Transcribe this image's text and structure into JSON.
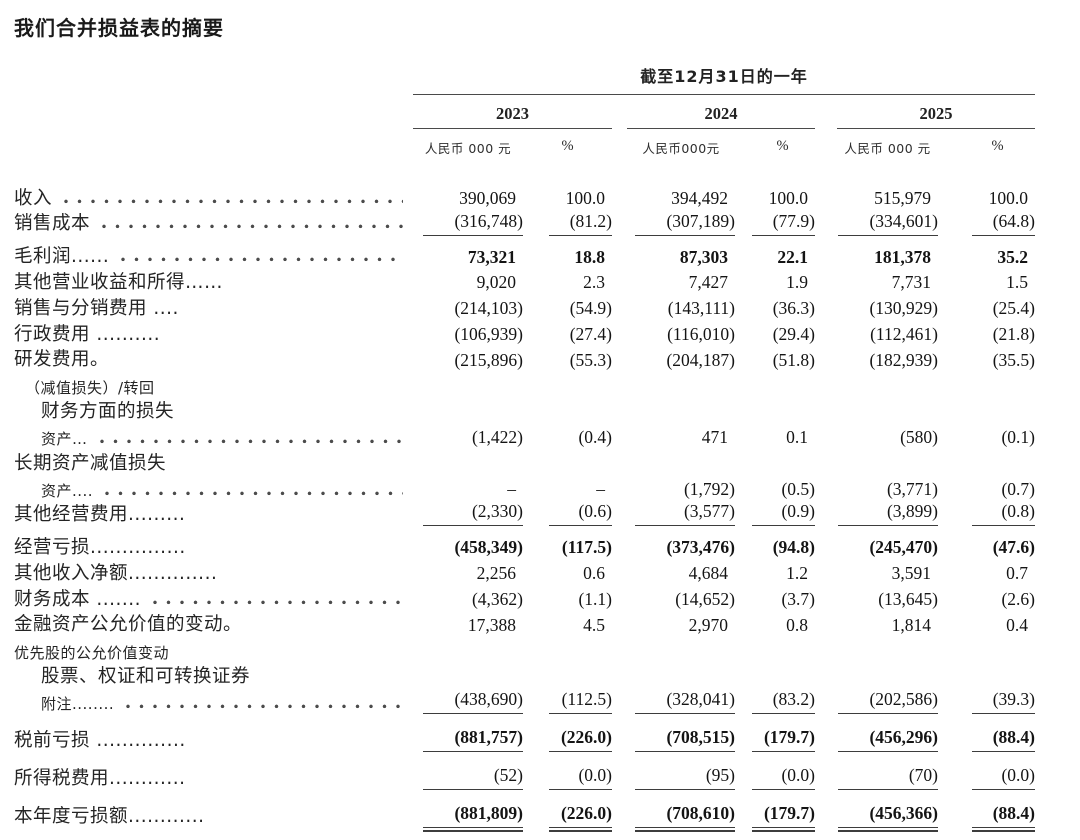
{
  "page": {
    "title": "我们合并损益表的摘要"
  },
  "table": {
    "period_header": "截至12月31日的一年",
    "groups": [
      {
        "year": "2023",
        "unit": "人民币 000 元",
        "pct": "%"
      },
      {
        "year": "2024",
        "unit": "人民币000元",
        "pct": "%"
      },
      {
        "year": "2025",
        "unit": "人民币 000 元",
        "pct": "%"
      }
    ],
    "rows": [
      {
        "label": "收入",
        "indent": 0,
        "small": false,
        "bold": false,
        "leader": true,
        "rule": "none",
        "values": [
          "390,069",
          "100.0",
          "394,492",
          "100.0",
          "515,979",
          "100.0"
        ]
      },
      {
        "label": "销售成本",
        "indent": 0,
        "small": false,
        "bold": false,
        "leader": true,
        "rule": "single",
        "values": [
          "(316,748)",
          "(81.2)",
          "(307,189)",
          "(77.9)",
          "(334,601)",
          "(64.8)"
        ]
      },
      {
        "label": "毛利润......",
        "indent": 0,
        "small": false,
        "bold": true,
        "leader": true,
        "rule": "none",
        "values": [
          "73,321",
          "18.8",
          "87,303",
          "22.1",
          "181,378",
          "35.2"
        ]
      },
      {
        "label": "其他营业收益和所得……",
        "indent": 0,
        "small": false,
        "bold": false,
        "leader": false,
        "rule": "none",
        "values": [
          "9,020",
          "2.3",
          "7,427",
          "1.9",
          "7,731",
          "1.5"
        ]
      },
      {
        "label": "销售与分销费用 ....",
        "indent": 0,
        "small": false,
        "bold": false,
        "leader": false,
        "rule": "none",
        "values": [
          "(214,103)",
          "(54.9)",
          "(143,111)",
          "(36.3)",
          "(130,929)",
          "(25.4)"
        ]
      },
      {
        "label": "行政费用 ..........",
        "indent": 0,
        "small": false,
        "bold": false,
        "leader": false,
        "rule": "none",
        "values": [
          "(106,939)",
          "(27.4)",
          "(116,010)",
          "(29.4)",
          "(112,461)",
          "(21.8)"
        ]
      },
      {
        "label": "研发费用。",
        "indent": 0,
        "small": false,
        "bold": false,
        "leader": false,
        "rule": "none",
        "values": [
          "(215,896)",
          "(55.3)",
          "(204,187)",
          "(51.8)",
          "(182,939)",
          "(35.5)"
        ]
      },
      {
        "label": "（减值损失）/转回",
        "indent": 1,
        "small": true,
        "bold": false,
        "leader": false,
        "rule": "none",
        "values": null
      },
      {
        "label": "财务方面的损失",
        "indent": 2,
        "small": false,
        "bold": false,
        "leader": false,
        "rule": "none",
        "values": null
      },
      {
        "label": "资产…",
        "indent": 2,
        "small": true,
        "bold": false,
        "leader": true,
        "rule": "none",
        "values": [
          "(1,422)",
          "(0.4)",
          "471",
          "0.1",
          "(580)",
          "(0.1)"
        ]
      },
      {
        "label": "长期资产减值损失",
        "indent": 0,
        "small": false,
        "bold": false,
        "leader": false,
        "rule": "none",
        "values": null
      },
      {
        "label": "资产....",
        "indent": 2,
        "small": true,
        "bold": false,
        "leader": true,
        "rule": "none",
        "values": [
          "–",
          "–",
          "(1,792)",
          "(0.5)",
          "(3,771)",
          "(0.7)"
        ]
      },
      {
        "label": "其他经营费用.........",
        "indent": 0,
        "small": false,
        "bold": false,
        "leader": false,
        "rule": "single",
        "values": [
          "(2,330)",
          "(0.6)",
          "(3,577)",
          "(0.9)",
          "(3,899)",
          "(0.8)"
        ]
      },
      {
        "label": "经营亏损...............",
        "indent": 0,
        "small": false,
        "bold": true,
        "leader": false,
        "rule": "none",
        "values": [
          "(458,349)",
          "(117.5)",
          "(373,476)",
          "(94.8)",
          "(245,470)",
          "(47.6)"
        ]
      },
      {
        "label": "其他收入净额..............",
        "indent": 0,
        "small": false,
        "bold": false,
        "leader": false,
        "rule": "none",
        "values": [
          "2,256",
          "0.6",
          "4,684",
          "1.2",
          "3,591",
          "0.7"
        ]
      },
      {
        "label": "财务成本 .......",
        "indent": 0,
        "small": false,
        "bold": false,
        "leader": true,
        "rule": "none",
        "values": [
          "(4,362)",
          "(1.1)",
          "(14,652)",
          "(3.7)",
          "(13,645)",
          "(2.6)"
        ]
      },
      {
        "label": "金融资产公允价值的变动。",
        "indent": 0,
        "small": false,
        "bold": false,
        "leader": false,
        "rule": "none",
        "values": [
          "17,388",
          "4.5",
          "2,970",
          "0.8",
          "1,814",
          "0.4"
        ]
      },
      {
        "label": "优先股的公允价值变动",
        "indent": 0,
        "small": true,
        "bold": false,
        "leader": false,
        "rule": "none",
        "values": null
      },
      {
        "label": "股票、权证和可转换证券",
        "indent": 2,
        "small": false,
        "bold": false,
        "leader": false,
        "rule": "none",
        "values": null
      },
      {
        "label": "附注........",
        "indent": 2,
        "small": true,
        "bold": false,
        "leader": true,
        "rule": "single",
        "values": [
          "(438,690)",
          "(112.5)",
          "(328,041)",
          "(83.2)",
          "(202,586)",
          "(39.3)"
        ]
      },
      {
        "label": "税前亏损 ..............",
        "indent": 0,
        "small": false,
        "bold": true,
        "leader": false,
        "rule": "single",
        "roomy": true,
        "values": [
          "(881,757)",
          "(226.0)",
          "(708,515)",
          "(179.7)",
          "(456,296)",
          "(88.4)"
        ]
      },
      {
        "label": "所得税费用............",
        "indent": 0,
        "small": false,
        "bold": false,
        "leader": false,
        "rule": "single",
        "roomy": true,
        "values": [
          "(52)",
          "(0.0)",
          "(95)",
          "(0.0)",
          "(70)",
          "(0.0)"
        ]
      },
      {
        "label": "本年度亏损额............",
        "indent": 0,
        "small": false,
        "bold": true,
        "leader": false,
        "rule": "double",
        "roomy": true,
        "values": [
          "(881,809)",
          "(226.0)",
          "(708,610)",
          "(179.7)",
          "(456,366)",
          "(88.4)"
        ]
      }
    ]
  }
}
